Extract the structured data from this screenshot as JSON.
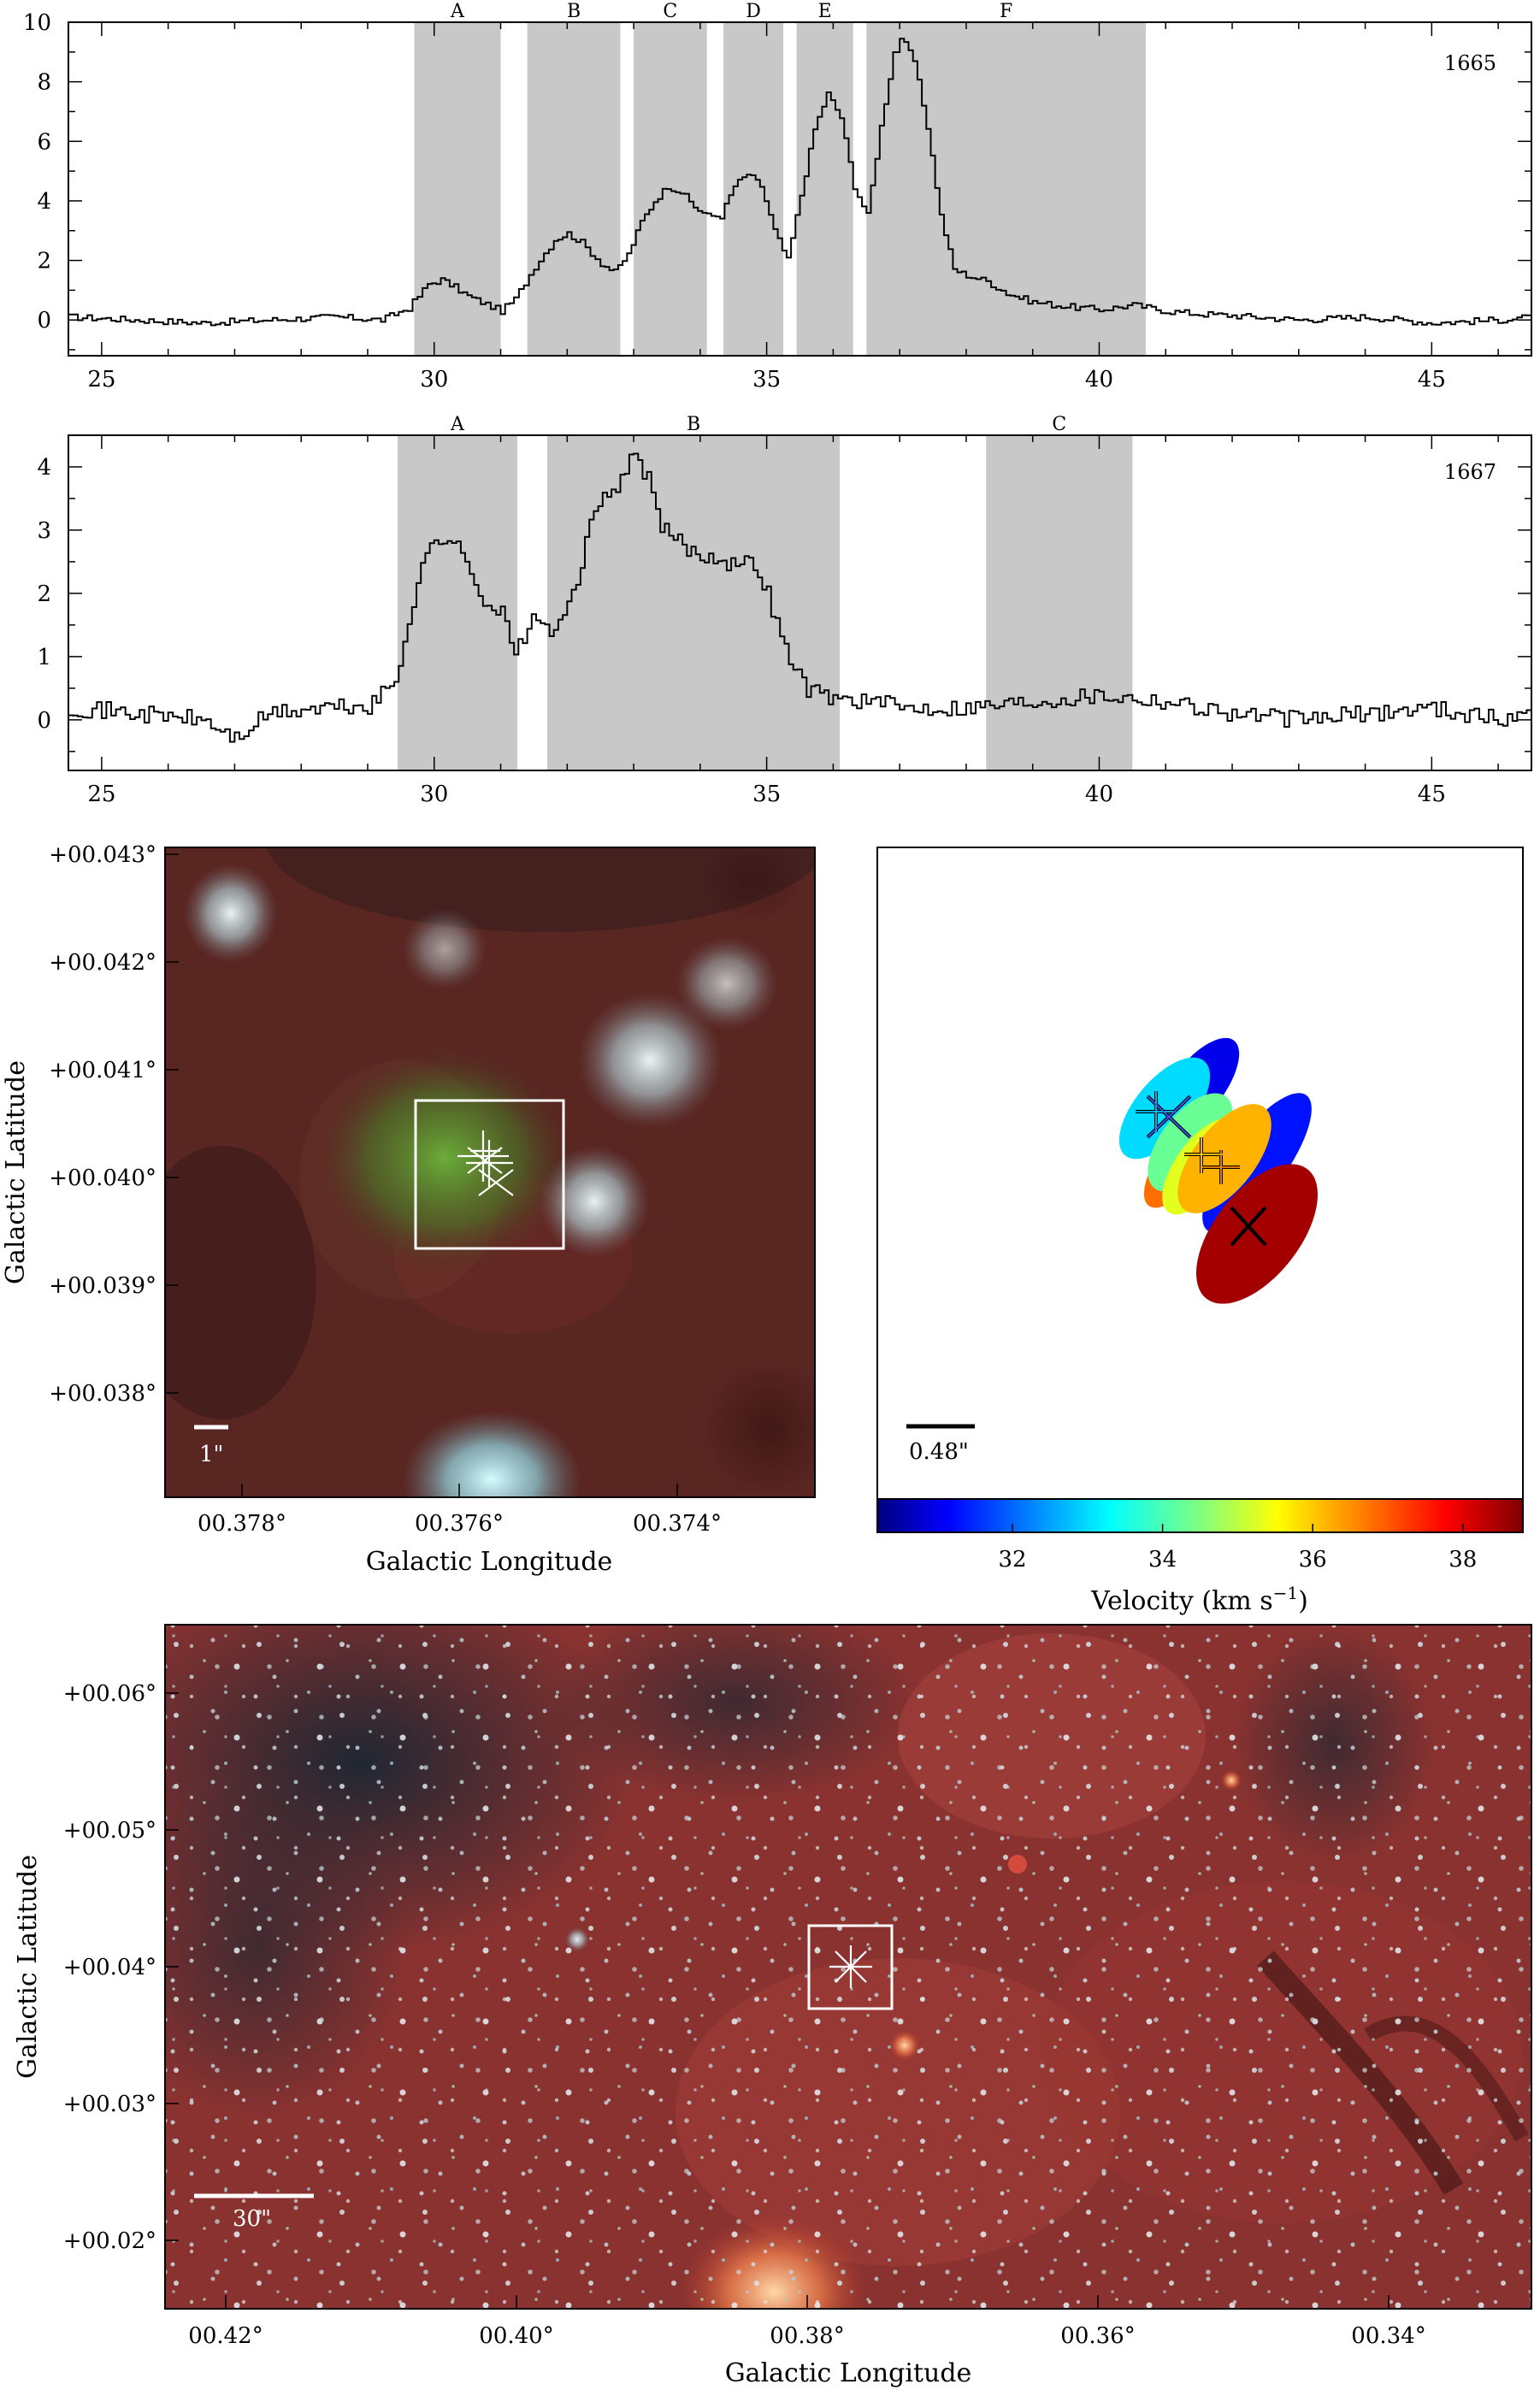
{
  "chart_data": [
    {
      "type": "line",
      "panel": "1665",
      "xlim": [
        24.5,
        46.5
      ],
      "ylim": [
        -1.2,
        10
      ],
      "x_ticks": [
        25,
        30,
        35,
        40,
        45
      ],
      "y_ticks": [
        0,
        2,
        4,
        6,
        8,
        10
      ],
      "bands": [
        {
          "label": "A",
          "from": 29.7,
          "to": 31.0
        },
        {
          "label": "B",
          "from": 31.4,
          "to": 32.8
        },
        {
          "label": "C",
          "from": 33.0,
          "to": 34.1
        },
        {
          "label": "D",
          "from": 34.35,
          "to": 35.25
        },
        {
          "label": "E",
          "from": 35.45,
          "to": 36.3
        },
        {
          "label": "F",
          "from": 36.5,
          "to": 40.7
        }
      ],
      "series": [
        {
          "x": [
            24.5,
            25.5,
            26.5,
            27.5,
            28.5,
            29.2,
            29.6,
            29.9,
            30.1,
            30.3,
            30.5,
            30.7,
            31.0,
            31.2,
            31.5,
            31.8,
            32.0,
            32.2,
            32.5,
            32.7,
            32.9,
            33.1,
            33.3,
            33.5,
            33.7,
            33.9,
            34.1,
            34.3,
            34.5,
            34.7,
            34.9,
            35.1,
            35.3,
            35.5,
            35.7,
            35.9,
            36.1,
            36.3,
            36.5,
            36.7,
            36.9,
            37.0,
            37.2,
            37.4,
            37.6,
            37.8,
            38.0,
            38.3,
            38.6,
            39.0,
            39.5,
            40.0,
            40.5,
            41.0,
            41.5,
            42.0,
            43.0,
            44.0,
            45.0,
            46.0,
            46.5
          ],
          "y": [
            0.1,
            0.0,
            -0.1,
            0.0,
            0.1,
            0.0,
            0.4,
            1.2,
            1.35,
            1.1,
            0.8,
            0.6,
            0.3,
            0.7,
            1.8,
            2.7,
            2.9,
            2.6,
            1.9,
            1.6,
            2.2,
            3.3,
            4.0,
            4.5,
            4.3,
            3.8,
            3.5,
            3.5,
            4.5,
            4.9,
            4.5,
            3.0,
            2.0,
            4.2,
            6.4,
            7.6,
            6.8,
            4.5,
            3.5,
            6.5,
            9.0,
            9.5,
            8.7,
            6.5,
            3.5,
            1.7,
            1.5,
            1.3,
            0.9,
            0.6,
            0.45,
            0.35,
            0.5,
            0.3,
            0.2,
            0.15,
            0.0,
            0.1,
            -0.1,
            0.0,
            0.1
          ]
        }
      ]
    },
    {
      "type": "line",
      "panel": "1667",
      "xlim": [
        24.5,
        46.5
      ],
      "ylim": [
        -0.8,
        4.5
      ],
      "x_ticks": [
        25,
        30,
        35,
        40,
        45
      ],
      "y_ticks": [
        0,
        1,
        2,
        3,
        4
      ],
      "bands": [
        {
          "label": "A",
          "from": 29.45,
          "to": 31.25
        },
        {
          "label": "B",
          "from": 31.7,
          "to": 36.1
        },
        {
          "label": "C",
          "from": 38.3,
          "to": 40.5
        }
      ],
      "series": [
        {
          "x": [
            24.5,
            25.5,
            26.5,
            27.0,
            27.5,
            28.5,
            29.0,
            29.4,
            29.6,
            29.8,
            30.0,
            30.2,
            30.4,
            30.6,
            30.8,
            31.0,
            31.2,
            31.4,
            31.6,
            31.8,
            32.0,
            32.2,
            32.4,
            32.6,
            32.8,
            33.0,
            33.2,
            33.4,
            33.6,
            33.8,
            34.0,
            34.2,
            34.4,
            34.6,
            34.8,
            35.0,
            35.2,
            35.4,
            35.6,
            35.8,
            36.0,
            36.5,
            37.0,
            38.0,
            39.0,
            40.0,
            41.0,
            42.0,
            43.0,
            44.0,
            45.0,
            46.0,
            46.5
          ],
          "y": [
            0.2,
            0.1,
            0.0,
            -0.3,
            0.1,
            0.2,
            0.2,
            0.6,
            1.6,
            2.5,
            2.8,
            2.9,
            2.6,
            2.2,
            1.8,
            1.7,
            1.0,
            1.5,
            1.6,
            1.3,
            1.8,
            2.5,
            3.3,
            3.6,
            3.8,
            4.2,
            3.8,
            3.0,
            2.9,
            2.7,
            2.6,
            2.6,
            2.5,
            2.45,
            2.5,
            2.0,
            1.3,
            0.8,
            0.5,
            0.4,
            0.35,
            0.3,
            0.2,
            0.2,
            0.3,
            0.4,
            0.3,
            0.1,
            0.0,
            0.1,
            0.2,
            0.0,
            0.1
          ]
        }
      ]
    },
    {
      "type": "scatter",
      "panel": "zoom-image",
      "xlabel": "Galactic Longitude",
      "ylabel": "Galactic Latitude",
      "x_ticks": [
        "00.378°",
        "00.376°",
        "00.374°"
      ],
      "y_ticks": [
        "+00.043°",
        "+00.042°",
        "+00.041°",
        "+00.040°",
        "+00.039°",
        "+00.038°"
      ],
      "scale_bar": "1\""
    },
    {
      "type": "scatter",
      "panel": "maser-spots",
      "scale_bar": "0.48\"",
      "colorbar_label": "Velocity (km s",
      "colorbar_unit_exp": "−1",
      "colorbar_label_close": ")",
      "colorbar_range": [
        30.2,
        38.8
      ],
      "colorbar_ticks": [
        32,
        34,
        36,
        38
      ],
      "spots": [
        {
          "velocity": 31.0,
          "kind": "ellipse"
        },
        {
          "velocity": 31.3,
          "kind": "ellipse"
        },
        {
          "velocity": 33.0,
          "kind": "ellipse"
        },
        {
          "velocity": 34.3,
          "kind": "ellipse"
        },
        {
          "velocity": 35.3,
          "kind": "ellipse"
        },
        {
          "velocity": 36.8,
          "kind": "ellipse"
        },
        {
          "velocity": 36.2,
          "kind": "ellipse"
        },
        {
          "velocity": 38.5,
          "kind": "ellipse"
        }
      ]
    },
    {
      "type": "scatter",
      "panel": "wide-image",
      "xlabel": "Galactic Longitude",
      "ylabel": "Galactic Latitude",
      "x_ticks": [
        "00.42°",
        "00.40°",
        "00.38°",
        "00.36°",
        "00.34°"
      ],
      "y_ticks": [
        "+00.06°",
        "+00.05°",
        "+00.04°",
        "+00.03°",
        "+00.02°"
      ],
      "scale_bar": "30\""
    }
  ],
  "labels": {
    "panel1": "1665",
    "panel2": "1667",
    "xlabel_zoom": "Galactic Longitude",
    "ylabel_zoom": "Galactic Latitude",
    "xlabel_wide": "Galactic Longitude",
    "ylabel_wide": "Galactic Latitude",
    "scale_zoom": "1\"",
    "scale_spots": "0.48\"",
    "scale_wide": "30\"",
    "colorbar_label": "Velocity (km s",
    "colorbar_exp": "−1",
    "colorbar_close": ")"
  }
}
